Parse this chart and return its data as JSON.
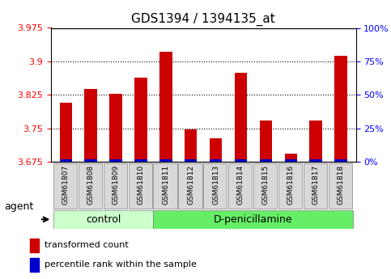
{
  "title": "GDS1394 / 1394135_at",
  "categories": [
    "GSM61807",
    "GSM61808",
    "GSM61809",
    "GSM61810",
    "GSM61811",
    "GSM61812",
    "GSM61813",
    "GSM61814",
    "GSM61815",
    "GSM61816",
    "GSM61817",
    "GSM61818"
  ],
  "red_values": [
    3.808,
    3.838,
    3.828,
    3.863,
    3.921,
    3.748,
    3.728,
    3.875,
    3.768,
    3.693,
    3.768,
    3.912
  ],
  "blue_values": [
    0.5,
    1.0,
    1.5,
    1.0,
    0.5,
    0.5,
    0.5,
    0.5,
    0.5,
    0.5,
    0.5,
    1.5
  ],
  "blue_heights": [
    2,
    2,
    2,
    2,
    2,
    2,
    2,
    2,
    2,
    2,
    2,
    2
  ],
  "ymin": 3.675,
  "ymax": 3.975,
  "yticks": [
    3.675,
    3.75,
    3.825,
    3.9,
    3.975
  ],
  "y2min": 0,
  "y2max": 100,
  "y2ticks": [
    0,
    25,
    50,
    75,
    100
  ],
  "y2ticklabels": [
    "0%",
    "25%",
    "50%",
    "75%",
    "100%"
  ],
  "control_group": [
    "GSM61807",
    "GSM61808",
    "GSM61809",
    "GSM61810"
  ],
  "treatment_group": [
    "GSM61811",
    "GSM61812",
    "GSM61813",
    "GSM61814",
    "GSM61815",
    "GSM61816",
    "GSM61817",
    "GSM61818"
  ],
  "control_label": "control",
  "treatment_label": "D-penicillamine",
  "agent_label": "agent",
  "legend_red": "transformed count",
  "legend_blue": "percentile rank within the sample",
  "bar_color": "#cc0000",
  "blue_color": "#0000cc",
  "control_bg": "#ccffcc",
  "treatment_bg": "#66ee66",
  "tick_bg": "#dddddd",
  "bar_width": 0.5,
  "base_value": 3.675
}
